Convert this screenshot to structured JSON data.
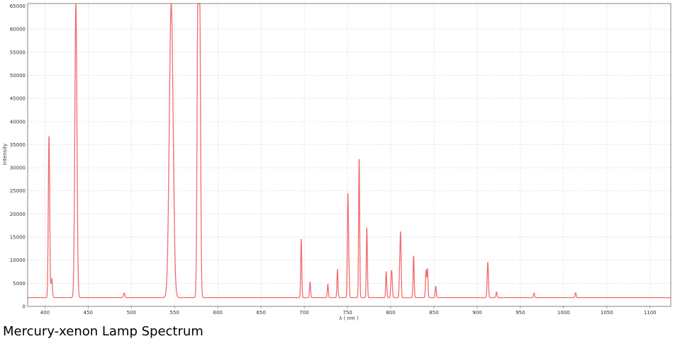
{
  "caption": "Mercury-xenon Lamp Spectrum",
  "chart_data": {
    "type": "line",
    "title": "",
    "xlabel": "λ ( nm )",
    "ylabel": "Intensity",
    "xlim": [
      380,
      1124
    ],
    "ylim": [
      0,
      65535
    ],
    "x_ticks": [
      400,
      450,
      500,
      550,
      600,
      650,
      700,
      750,
      800,
      850,
      900,
      950,
      1000,
      1050,
      1100
    ],
    "y_ticks": [
      0,
      5000,
      10000,
      15000,
      20000,
      25000,
      30000,
      35000,
      40000,
      45000,
      50000,
      55000,
      60000,
      65000
    ],
    "grid": true,
    "color": "#f26d6d",
    "baseline": 1900,
    "peaks": [
      {
        "x": 404.7,
        "y": 37000,
        "w": 0.8
      },
      {
        "x": 407.8,
        "y": 6000,
        "w": 0.8
      },
      {
        "x": 435.8,
        "y": 65535,
        "w": 1.2
      },
      {
        "x": 491.6,
        "y": 2900,
        "w": 0.8
      },
      {
        "x": 546.1,
        "y": 65535,
        "w": 2.2
      },
      {
        "x": 577.0,
        "y": 65535,
        "w": 1.0
      },
      {
        "x": 579.1,
        "y": 62000,
        "w": 1.0
      },
      {
        "x": 696.5,
        "y": 14700,
        "w": 0.6
      },
      {
        "x": 706.7,
        "y": 5300,
        "w": 0.6
      },
      {
        "x": 727.3,
        "y": 4800,
        "w": 0.6
      },
      {
        "x": 738.4,
        "y": 8000,
        "w": 0.6
      },
      {
        "x": 750.4,
        "y": 23200,
        "w": 0.6
      },
      {
        "x": 751.5,
        "y": 8500,
        "w": 0.6
      },
      {
        "x": 763.5,
        "y": 32200,
        "w": 0.6
      },
      {
        "x": 772.4,
        "y": 17000,
        "w": 0.6
      },
      {
        "x": 794.8,
        "y": 7500,
        "w": 0.6
      },
      {
        "x": 800.6,
        "y": 6000,
        "w": 0.6
      },
      {
        "x": 801.5,
        "y": 5600,
        "w": 0.6
      },
      {
        "x": 810.4,
        "y": 7700,
        "w": 0.6
      },
      {
        "x": 811.5,
        "y": 14900,
        "w": 0.6
      },
      {
        "x": 826.5,
        "y": 11000,
        "w": 0.6
      },
      {
        "x": 840.8,
        "y": 7800,
        "w": 0.6
      },
      {
        "x": 842.5,
        "y": 8100,
        "w": 0.6
      },
      {
        "x": 852.1,
        "y": 4400,
        "w": 0.6
      },
      {
        "x": 912.3,
        "y": 9600,
        "w": 0.7
      },
      {
        "x": 922.4,
        "y": 3100,
        "w": 0.6
      },
      {
        "x": 965.8,
        "y": 2900,
        "w": 0.6
      },
      {
        "x": 1013.9,
        "y": 3000,
        "w": 0.6
      }
    ]
  }
}
